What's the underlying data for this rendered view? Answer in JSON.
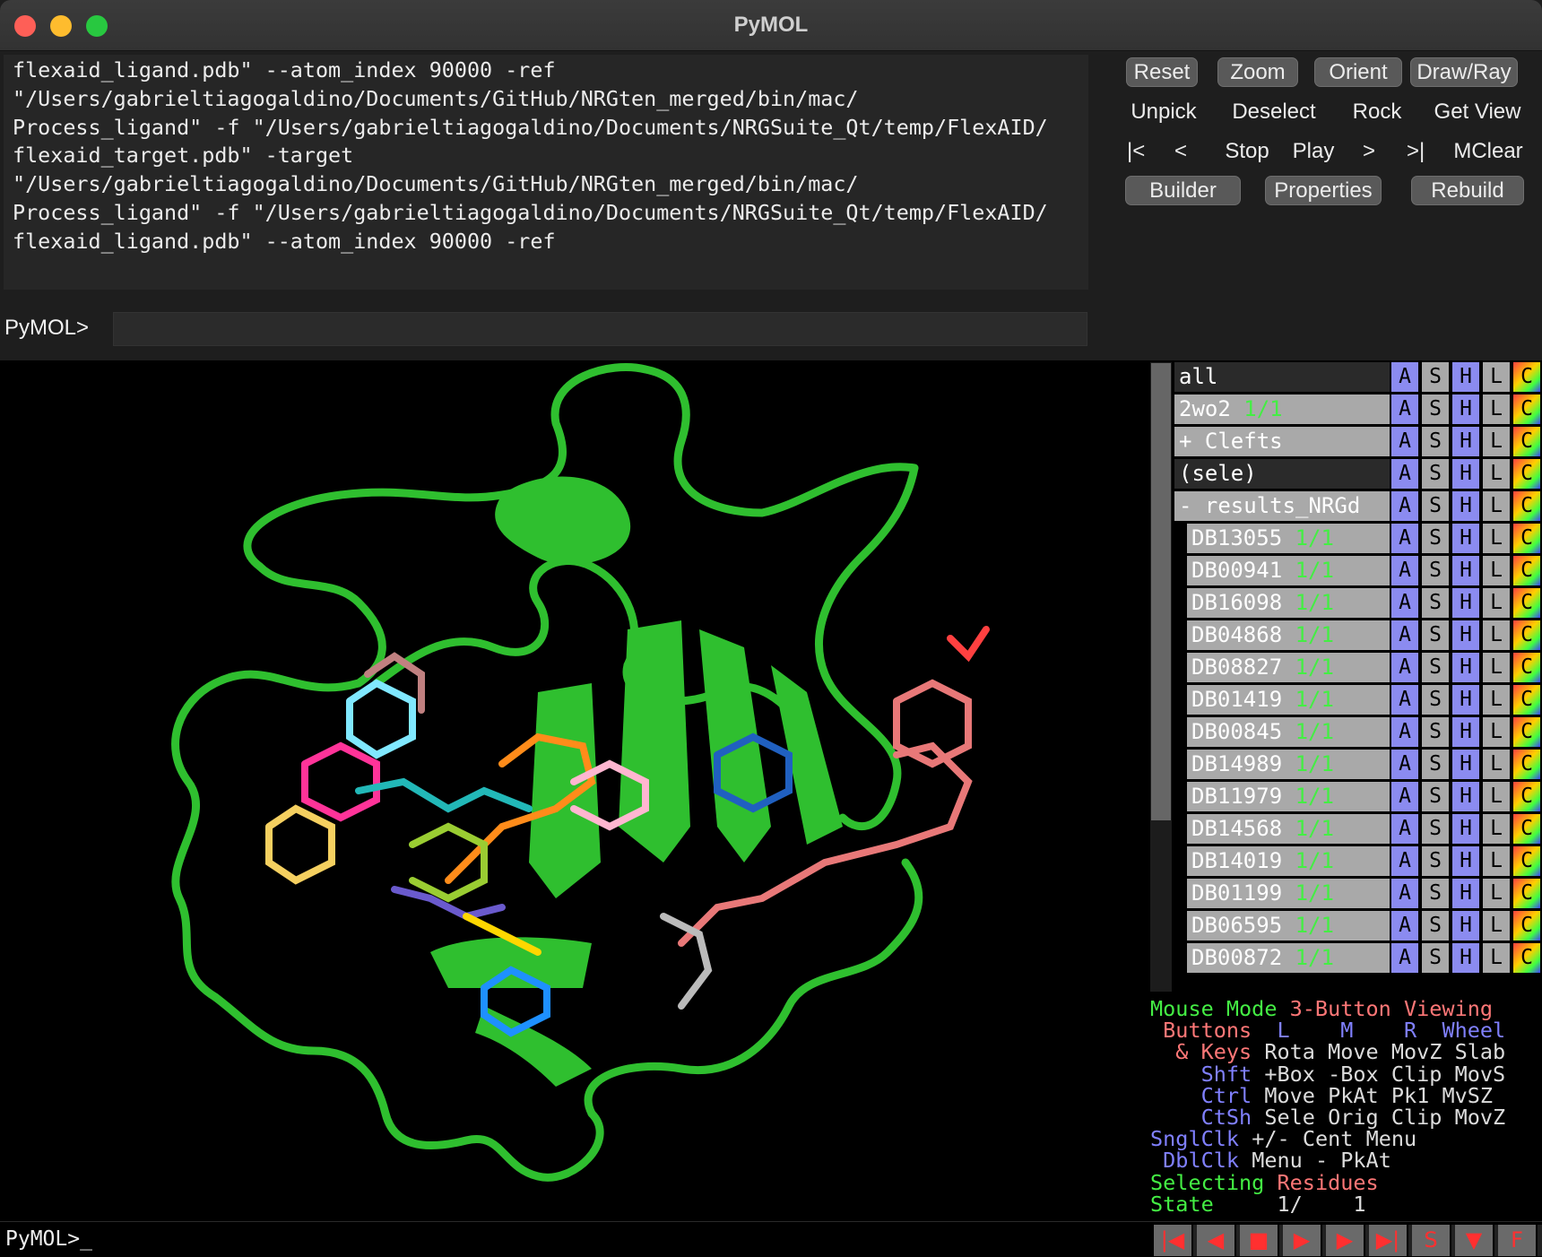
{
  "window": {
    "title": "PyMOL"
  },
  "log": {
    "lines": [
      "flexaid_ligand.pdb\" --atom_index 90000 -ref",
      "\"/Users/gabrieltiagogaldino/Documents/GitHub/NRGten_merged/bin/mac/",
      "Process_ligand\" -f \"/Users/gabrieltiagogaldino/Documents/NRGSuite_Qt/temp/FlexAID/",
      "flexaid_target.pdb\" -target",
      "\"/Users/gabrieltiagogaldino/Documents/GitHub/NRGten_merged/bin/mac/",
      "Process_ligand\" -f \"/Users/gabrieltiagogaldino/Documents/NRGSuite_Qt/temp/FlexAID/",
      "flexaid_ligand.pdb\" --atom_index 90000 -ref"
    ]
  },
  "command": {
    "prompt": "PyMOL>",
    "value": ""
  },
  "toolbar": {
    "row1": [
      "Reset",
      "Zoom",
      "Orient",
      "Draw/Ray"
    ],
    "row2": [
      "Unpick",
      "Deselect",
      "Rock",
      "Get View"
    ],
    "row3": [
      "|<",
      "<",
      "Stop",
      "Play",
      ">",
      ">|",
      "MClear"
    ],
    "row4": [
      "Builder",
      "Properties",
      "Rebuild"
    ]
  },
  "object_buttons": [
    "A",
    "S",
    "H",
    "L",
    "C"
  ],
  "objects": [
    {
      "name": "all",
      "state": "",
      "indent": 0
    },
    {
      "name": "2wo2",
      "state": "1/1",
      "indent": 0
    },
    {
      "name": "+ Clefts",
      "state": "",
      "indent": 0
    },
    {
      "name": "(sele)",
      "state": "",
      "indent": 0
    },
    {
      "name": "- results_NRGd",
      "state": "",
      "indent": 0
    },
    {
      "name": "DB13055",
      "state": "1/1",
      "indent": 1
    },
    {
      "name": "DB00941",
      "state": "1/1",
      "indent": 1
    },
    {
      "name": "DB16098",
      "state": "1/1",
      "indent": 1
    },
    {
      "name": "DB04868",
      "state": "1/1",
      "indent": 1
    },
    {
      "name": "DB08827",
      "state": "1/1",
      "indent": 1
    },
    {
      "name": "DB01419",
      "state": "1/1",
      "indent": 1
    },
    {
      "name": "DB00845",
      "state": "1/1",
      "indent": 1
    },
    {
      "name": "DB14989",
      "state": "1/1",
      "indent": 1
    },
    {
      "name": "DB11979",
      "state": "1/1",
      "indent": 1
    },
    {
      "name": "DB14568",
      "state": "1/1",
      "indent": 1
    },
    {
      "name": "DB14019",
      "state": "1/1",
      "indent": 1
    },
    {
      "name": "DB01199",
      "state": "1/1",
      "indent": 1
    },
    {
      "name": "DB06595",
      "state": "1/1",
      "indent": 1
    },
    {
      "name": "DB00872",
      "state": "1/1",
      "indent": 1
    }
  ],
  "mouse": {
    "mode_label": "Mouse Mode",
    "mode_value": "3-Button Viewing",
    "buttons_label": "Buttons",
    "buttons": [
      "L",
      "M",
      "R",
      "Wheel"
    ],
    "rows": [
      {
        "key": "& Keys",
        "values": [
          "Rota",
          "Move",
          "MovZ",
          "Slab"
        ]
      },
      {
        "key": "Shft",
        "values": [
          "+Box",
          "-Box",
          "Clip",
          "MovS"
        ]
      },
      {
        "key": "Ctrl",
        "values": [
          "Move",
          "PkAt",
          "Pk1",
          "MvSZ"
        ]
      },
      {
        "key": "CtSh",
        "values": [
          "Sele",
          "Orig",
          "Clip",
          "MovZ"
        ]
      },
      {
        "key": "SnglClk",
        "values": [
          "+/-",
          "Cent",
          "Menu",
          ""
        ]
      },
      {
        "key": "DblClk",
        "values": [
          "Menu",
          "-",
          "PkAt",
          ""
        ]
      }
    ],
    "selecting_label": "Selecting",
    "selecting_value": "Residues",
    "state_label": "State",
    "state_value": "1/",
    "state_total": "1"
  },
  "bottom": {
    "prompt": "PyMOL>_"
  },
  "player": [
    "|◀",
    "◀",
    "■",
    "▶",
    "▶",
    "▶|",
    "S",
    "▼",
    "F"
  ]
}
